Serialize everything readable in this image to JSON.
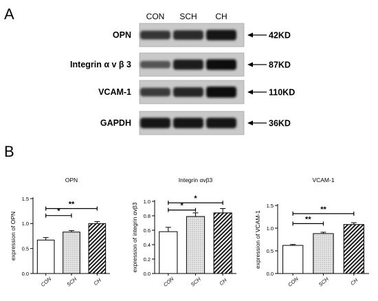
{
  "panel_a": {
    "letter": "A",
    "lanes": [
      "CON",
      "SCH",
      "CH"
    ],
    "blots": [
      {
        "protein": "OPN",
        "size": "42KD",
        "intensity": [
          0.6,
          0.72,
          0.92
        ]
      },
      {
        "protein": "Integrin α v β 3",
        "size": "87KD",
        "intensity": [
          0.35,
          0.85,
          0.95
        ]
      },
      {
        "protein": "VCAM-1",
        "size": "110KD",
        "intensity": [
          0.55,
          0.75,
          1.0
        ]
      },
      {
        "protein": "GAPDH",
        "size": "36KD",
        "intensity": [
          0.9,
          0.9,
          0.9
        ]
      }
    ]
  },
  "panel_b": {
    "letter": "B"
  },
  "chart_data": [
    {
      "type": "bar",
      "title": "OPN",
      "ylabel": "expression of OPN",
      "xlabel": "",
      "categories": [
        "CON",
        "SCH",
        "CH"
      ],
      "values": [
        0.67,
        0.83,
        1.0
      ],
      "errors": [
        0.05,
        0.03,
        0.04
      ],
      "ylim": [
        0,
        1.5
      ],
      "yticks": [
        0.0,
        0.5,
        1.0,
        1.5
      ],
      "ytick_labels": [
        "0.0",
        "0.5",
        "1.0",
        "1.5"
      ],
      "patterns": [
        "none",
        "dots",
        "hatch"
      ],
      "significance": [
        {
          "from": 0,
          "to": 1,
          "label": "*",
          "y": 1.16
        },
        {
          "from": 0,
          "to": 2,
          "label": "**",
          "y": 1.3
        }
      ]
    },
    {
      "type": "bar",
      "title": "Integrin αvβ3",
      "ylabel": "expression of integrin αvβ3",
      "xlabel": "",
      "categories": [
        "CON",
        "SCH",
        "CH"
      ],
      "values": [
        0.58,
        0.79,
        0.84
      ],
      "errors": [
        0.06,
        0.05,
        0.06
      ],
      "ylim": [
        0,
        1.0
      ],
      "yticks": [
        0.0,
        0.2,
        0.4,
        0.6,
        0.8,
        1.0
      ],
      "ytick_labels": [
        "0.0",
        "0.2",
        "0.4",
        "0.6",
        "0.8",
        "1.0"
      ],
      "patterns": [
        "none",
        "dots",
        "hatch"
      ],
      "significance": [
        {
          "from": 0,
          "to": 1,
          "label": "*",
          "y": 0.88
        },
        {
          "from": 0,
          "to": 2,
          "label": "*",
          "y": 0.98
        }
      ]
    },
    {
      "type": "bar",
      "title": "VCAM-1",
      "ylabel": "expression of VCAM-1",
      "xlabel": "",
      "categories": [
        "CON",
        "SCH",
        "CH"
      ],
      "values": [
        0.62,
        0.88,
        1.08
      ],
      "errors": [
        0.02,
        0.03,
        0.04
      ],
      "ylim": [
        0,
        1.5
      ],
      "yticks": [
        0.0,
        0.5,
        1.0,
        1.5
      ],
      "ytick_labels": [
        "0.0",
        "0.5",
        "1.0",
        "1.5"
      ],
      "patterns": [
        "none",
        "dots",
        "hatch"
      ],
      "significance": [
        {
          "from": 0,
          "to": 1,
          "label": "**",
          "y": 1.1
        },
        {
          "from": 0,
          "to": 2,
          "label": "**",
          "y": 1.32
        }
      ]
    }
  ]
}
